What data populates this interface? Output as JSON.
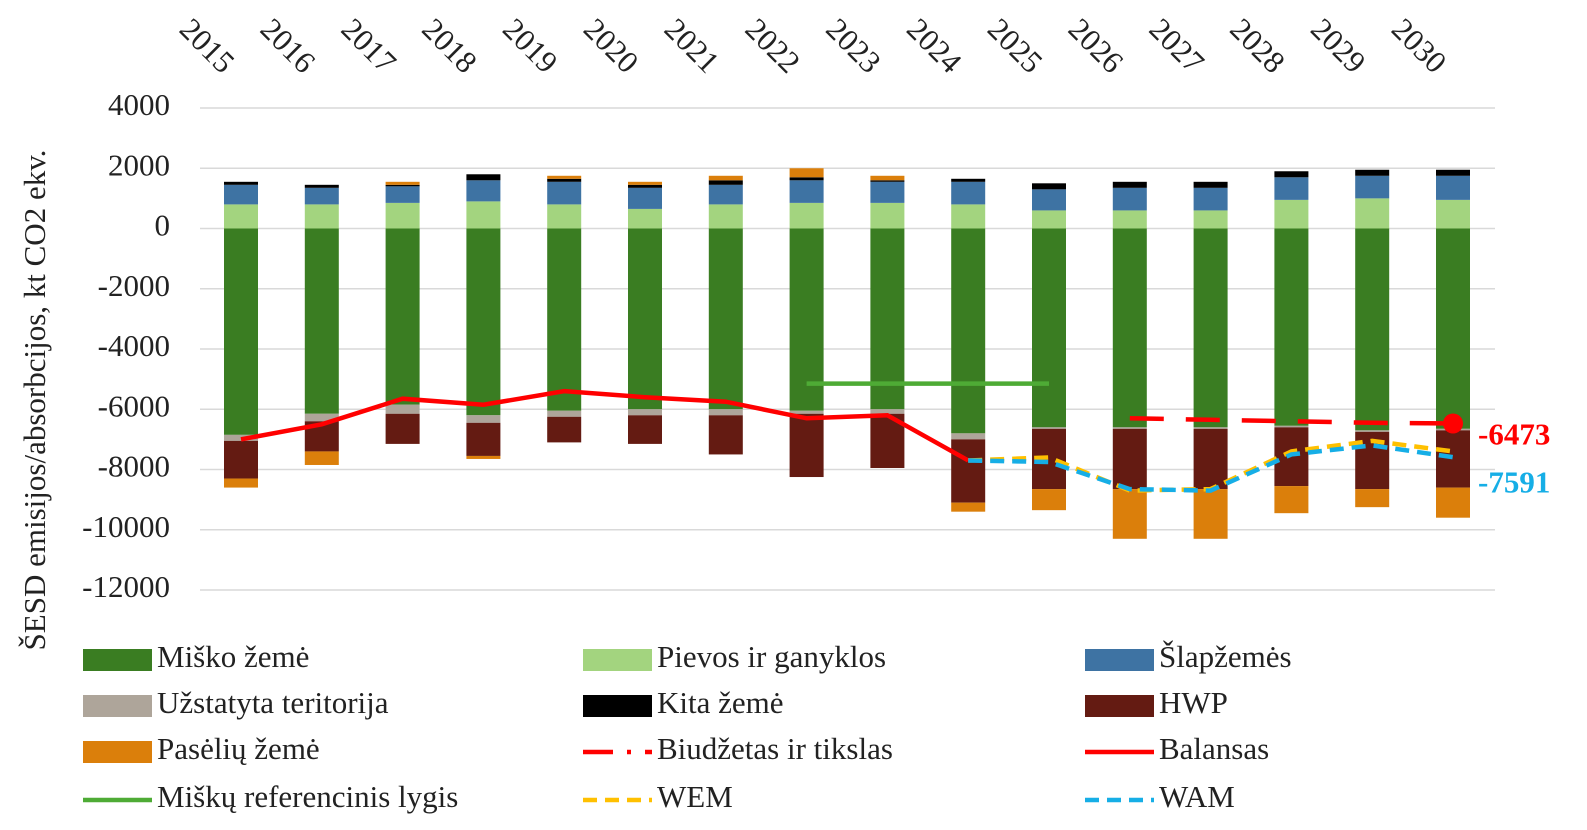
{
  "chart_data": {
    "type": "bar",
    "y_label": "ŠESD emisijos/absorbcijos, kt CO2 ekv.",
    "categories": [
      "2015",
      "2016",
      "2017",
      "2018",
      "2019",
      "2020",
      "2021",
      "2022",
      "2023",
      "2024",
      "2025",
      "2026",
      "2027",
      "2028",
      "2029",
      "2030"
    ],
    "ylim": [
      -12000,
      4000
    ],
    "yticks": [
      -12000,
      -10000,
      -8000,
      -6000,
      -4000,
      -2000,
      0,
      2000,
      4000
    ],
    "grid": true,
    "series": [
      {
        "name": "Miško žemė",
        "type": "bar",
        "color": "#3a7d22",
        "values": [
          -6850,
          -6150,
          -5850,
          -6200,
          -6050,
          -6000,
          -6000,
          -6050,
          -6000,
          -6800,
          -6600,
          -6600,
          -6600,
          -6550,
          -6700,
          -6650
        ]
      },
      {
        "name": "Pievos ir ganyklos",
        "type": "bar",
        "color": "#a3d47f",
        "values": [
          800,
          800,
          850,
          900,
          800,
          650,
          800,
          850,
          850,
          800,
          600,
          600,
          600,
          950,
          1000,
          950
        ]
      },
      {
        "name": "Šlapžemės",
        "type": "bar",
        "color": "#3e73a3",
        "values": [
          650,
          550,
          550,
          700,
          750,
          700,
          650,
          750,
          700,
          750,
          700,
          750,
          750,
          750,
          750,
          800
        ]
      },
      {
        "name": "Užstatyta teritorija",
        "type": "bar",
        "color": "#aea59a",
        "values": [
          -200,
          -250,
          -300,
          -250,
          -200,
          -200,
          -200,
          -100,
          -150,
          -200,
          -50,
          -50,
          -50,
          -50,
          -50,
          -50
        ]
      },
      {
        "name": "Kita žemė",
        "type": "bar",
        "color": "#000000",
        "values": [
          100,
          100,
          50,
          200,
          100,
          100,
          150,
          100,
          50,
          100,
          200,
          200,
          200,
          200,
          200,
          200
        ]
      },
      {
        "name": "HWP",
        "type": "bar",
        "color": "#641b12",
        "values": [
          -1250,
          -1000,
          -1000,
          -1100,
          -850,
          -950,
          -1300,
          -2100,
          -1800,
          -2100,
          -2000,
          -2000,
          -2000,
          -1950,
          -1900,
          -1900
        ]
      },
      {
        "name": "Pasėlių žemė",
        "type": "bar",
        "color": "#db7f0b",
        "values": [
          -300,
          -450,
          100,
          -100,
          100,
          100,
          150,
          300,
          150,
          -300,
          -700,
          -1650,
          -1650,
          -900,
          -600,
          -1000
        ]
      },
      {
        "name": "Biudžetas ir tikslas",
        "type": "line",
        "color": "#ff0000",
        "dash": "34,22",
        "values": [
          null,
          null,
          null,
          null,
          null,
          null,
          null,
          null,
          null,
          null,
          null,
          -6300,
          -6350,
          -6400,
          -6450,
          -6473
        ]
      },
      {
        "name": "Balansas",
        "type": "line",
        "color": "#ff0000",
        "values": [
          -7000,
          -6500,
          -5650,
          -5850,
          -5400,
          -5600,
          -5750,
          -6300,
          -6200,
          -7700,
          null,
          null,
          null,
          null,
          null,
          null
        ]
      },
      {
        "name": "Miškų referencinis lygis",
        "type": "line",
        "color": "#4eab35",
        "values": [
          null,
          null,
          null,
          null,
          null,
          null,
          null,
          -5150,
          -5150,
          -5150,
          -5150,
          null,
          null,
          null,
          null,
          null
        ]
      },
      {
        "name": "WEM",
        "type": "line",
        "color": "#ffc000",
        "dash": "14,8",
        "values": [
          null,
          null,
          null,
          null,
          null,
          null,
          null,
          null,
          null,
          -7700,
          -7600,
          -8700,
          -8650,
          -7400,
          -7050,
          -7400
        ]
      },
      {
        "name": "WAM",
        "type": "line",
        "color": "#16aee6",
        "dash": "14,8",
        "values": [
          null,
          null,
          null,
          null,
          null,
          null,
          null,
          null,
          null,
          -7700,
          -7750,
          -8650,
          -8700,
          -7500,
          -7200,
          -7591
        ]
      }
    ]
  }
}
